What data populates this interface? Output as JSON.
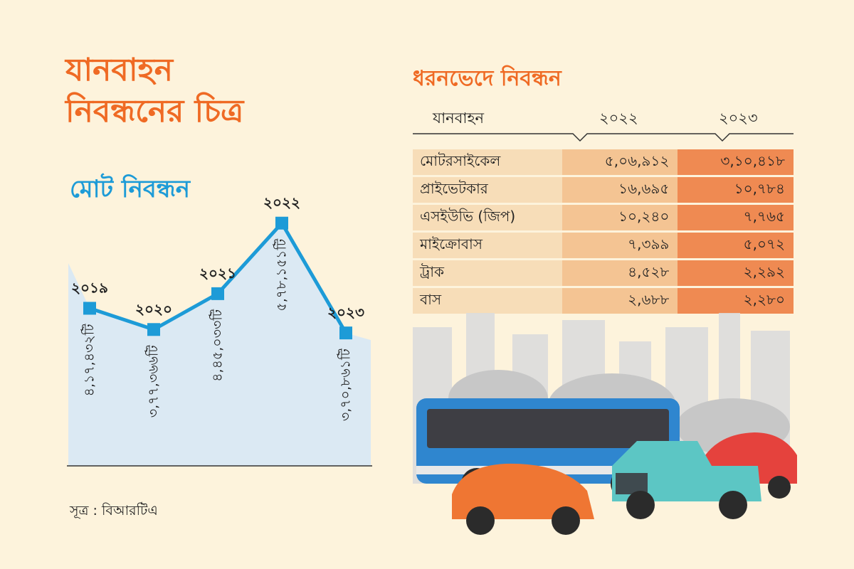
{
  "title": {
    "line1": "যানবাহন",
    "line2": "নিবন্ধনের চিত্র"
  },
  "subtitle": "মোট নিবন্ধন",
  "source": "সূত্র : বিআরটিএ",
  "colors": {
    "title": "#ef6a24",
    "line": "#1d9bd7",
    "area": "#dbe9f3",
    "col_2022": "#f4c493",
    "col_2023": "#ef8a52",
    "col_name": "#f7ddb8",
    "background": "#fdf3dc"
  },
  "chart_data": {
    "type": "line",
    "x": [
      "2019",
      "2020",
      "2021",
      "2022",
      "2023"
    ],
    "year_labels": [
      "২০১৯",
      "২০২০",
      "২০২১",
      "২০২২",
      "২০২৩"
    ],
    "values": [
      417432,
      377366,
      445033,
      578151,
      370861
    ],
    "value_labels": [
      "৪,১৭,৪৩২টি",
      "৩,৭৭,৩৬৬টি",
      "৪,৪৫,০৩৩টি",
      "৫,৭৮,১৫১টি",
      "৩,৭০,৮৬১টি"
    ],
    "ylim": [
      120000,
      610000
    ],
    "grid": false,
    "legend": "none"
  },
  "table": {
    "title": "ধরনভেদে নিবন্ধন",
    "headers": {
      "vehicle": "যানবাহন",
      "y1": "২০২২",
      "y2": "২০২৩"
    },
    "rows": [
      {
        "name": "মোটরসাইকেল",
        "y1": "৫,০৬,৯১২",
        "y2": "৩,১০,৪১৮"
      },
      {
        "name": "প্রাইভেটকার",
        "y1": "১৬,৬৯৫",
        "y2": "১০,৭৮৪"
      },
      {
        "name": "এসইউভি (জিপ)",
        "y1": "১০,২৪০",
        "y2": "৭,৭৬৫"
      },
      {
        "name": "মাইক্রোবাস",
        "y1": "৭,৩৯৯",
        "y2": "৫,০৭২"
      },
      {
        "name": "ট্রাক",
        "y1": "৪,৫২৮",
        "y2": "২,২৯২"
      },
      {
        "name": "বাস",
        "y1": "২,৬৮৮",
        "y2": "২,২৮০"
      }
    ]
  }
}
